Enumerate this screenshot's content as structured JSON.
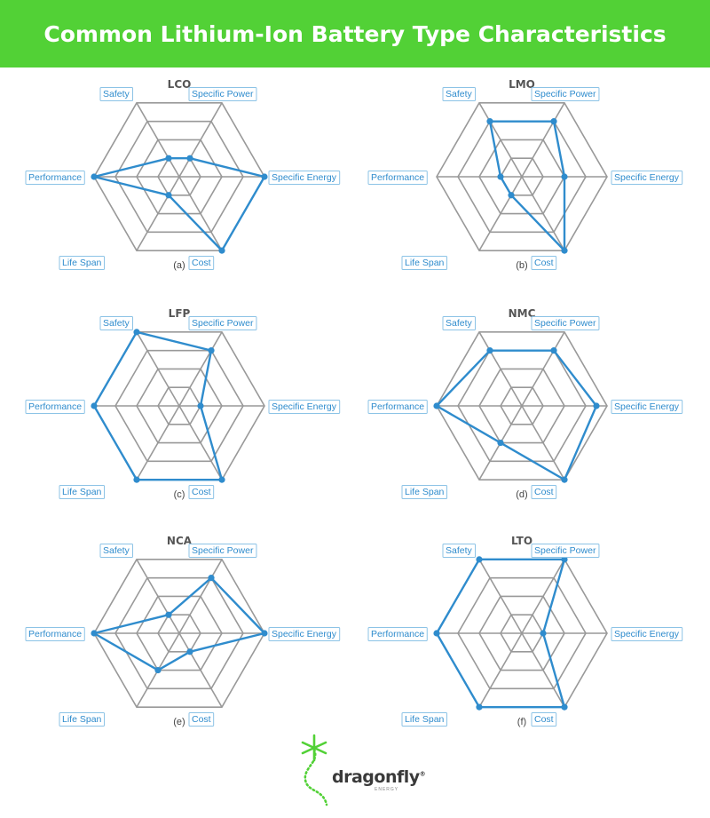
{
  "header": {
    "title": "Common Lithium-Ion Battery Type Characteristics"
  },
  "colors": {
    "header_bg": "#52d136",
    "grid": "#999999",
    "series": "#2f8ccd",
    "label_text": "#2f8ccd",
    "label_border": "#8cc3e6",
    "logo_green": "#52d136"
  },
  "axes": [
    "Specific Power",
    "Specific Energy",
    "Cost",
    "Life Span",
    "Performance",
    "Safety"
  ],
  "chart_data": [
    {
      "type": "radar",
      "title": "LCO",
      "caption": "(a)",
      "scale": [
        0,
        4
      ],
      "values": [
        1,
        4,
        4,
        1,
        4,
        1
      ]
    },
    {
      "type": "radar",
      "title": "LMO",
      "caption": "(b)",
      "scale": [
        0,
        4
      ],
      "values": [
        3,
        2,
        4,
        1,
        1,
        3
      ]
    },
    {
      "type": "radar",
      "title": "LFP",
      "caption": "(c)",
      "scale": [
        0,
        4
      ],
      "values": [
        3,
        1,
        4,
        4,
        4,
        4
      ]
    },
    {
      "type": "radar",
      "title": "NMC",
      "caption": "(d)",
      "scale": [
        0,
        4
      ],
      "values": [
        3,
        3.5,
        4,
        2,
        4,
        3
      ]
    },
    {
      "type": "radar",
      "title": "NCA",
      "caption": "(e)",
      "scale": [
        0,
        4
      ],
      "values": [
        3,
        4,
        1,
        2,
        4,
        1
      ]
    },
    {
      "type": "radar",
      "title": "LTO",
      "caption": "(f)",
      "scale": [
        0,
        4
      ],
      "values": [
        4,
        1,
        4,
        4,
        4,
        4
      ]
    }
  ],
  "logo": {
    "word": "dragonfly",
    "reg": "®",
    "sub": "ENERGY"
  }
}
